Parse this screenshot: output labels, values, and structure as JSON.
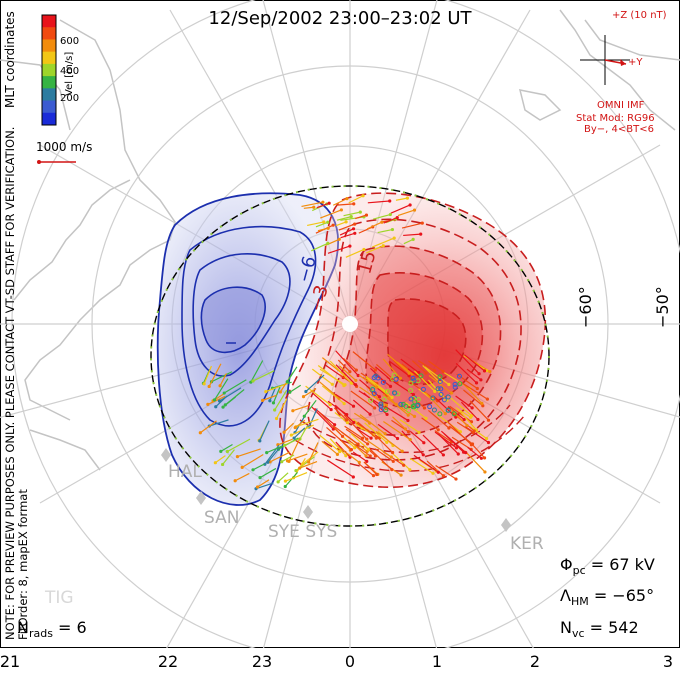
{
  "title": "12/Sep/2002  23:00–23:02  UT",
  "colorbar": {
    "label": "Vel [m/s]",
    "ticks": [
      "600",
      "400",
      "200"
    ],
    "colors": [
      "#e8131b",
      "#f04a10",
      "#f28c0c",
      "#f2c615",
      "#9ed52a",
      "#36b343",
      "#2c7ca0",
      "#3b5bd1",
      "#1a2bd8"
    ]
  },
  "coord_label": "MLT coordinates",
  "ref_vector": "1000 m/s",
  "imf": {
    "z_label": "+Z (10 nT)",
    "y_label": "+Y",
    "source": "OMNI IMF",
    "model_line1": "Stat Mod: RG96",
    "model_line2": "By−, 4<BT<6"
  },
  "lat_labels": [
    "−60°",
    "−50°"
  ],
  "contour_labels": [
    "−6",
    "−3",
    "15"
  ],
  "stations": [
    "HAL",
    "SAN",
    "SYE SYS",
    "KER",
    "TIG"
  ],
  "stats": {
    "phi_sym": "Φ",
    "phi_sub": "pc",
    "phi_value": "= 67 kV",
    "lambda_sym": "Λ",
    "lambda_sub": "HM",
    "lambda_value": "= −65°",
    "nvc_sym": "N",
    "nvc_sub": "vc",
    "nvc_value": "= 542",
    "nrads_sym": "N",
    "nrads_sub": "rads",
    "nrads_value": "= 6"
  },
  "side_note1": "NOTE: FOR PREVIEW PURPOSES ONLY. PLEASE CONTACT VT-SD STAFF FOR VERIFICATION.",
  "side_note2": "FitOrder: 8, mapEX format",
  "mlt_ticks": [
    "21",
    "22",
    "23",
    "0",
    "1",
    "2",
    "3"
  ],
  "colors": {
    "positive": "#e22a2a",
    "negative": "#1c2fae",
    "boundary": "#8cc63f",
    "grid": "#c8c8c8"
  }
}
